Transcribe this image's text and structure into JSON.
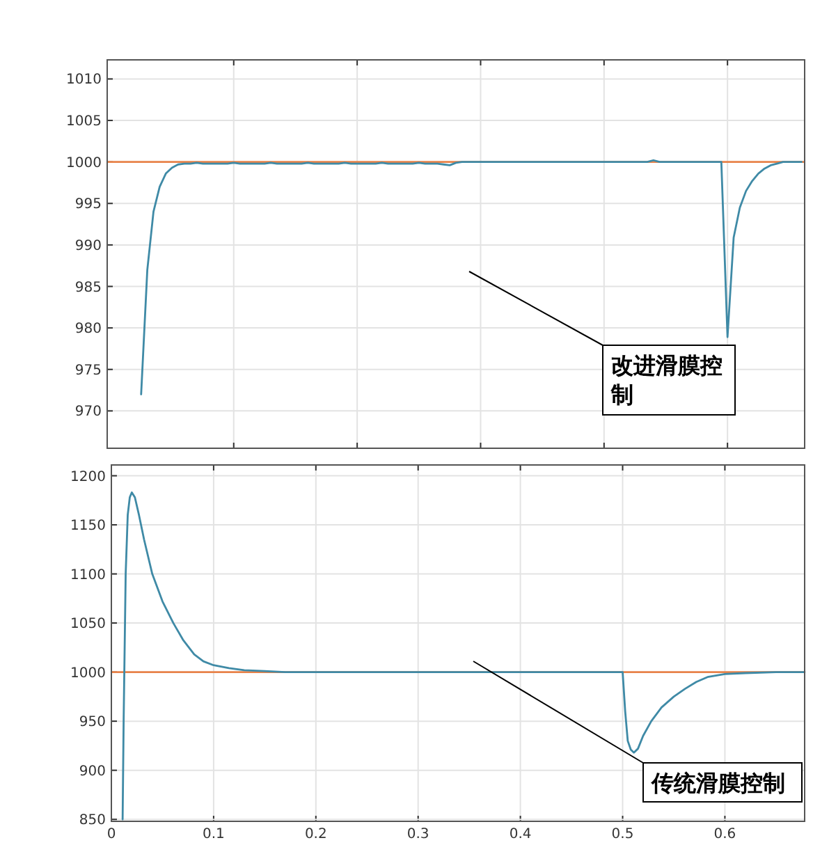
{
  "chart_data": [
    {
      "type": "line",
      "ylim": [
        965.5,
        1012.3
      ],
      "categories": [
        null,
        null,
        null,
        null,
        null,
        null,
        null,
        null,
        null,
        null,
        null,
        null,
        null,
        null,
        null,
        null,
        null,
        null,
        null,
        null,
        null,
        null,
        null,
        null,
        null,
        null,
        null,
        null,
        null,
        null,
        null,
        null,
        null,
        null,
        null,
        null,
        null,
        null,
        null,
        null,
        null,
        null,
        null,
        null,
        null,
        null,
        null,
        null,
        null,
        null,
        null,
        null,
        null,
        null,
        null,
        null,
        null,
        null,
        null,
        null,
        null,
        null,
        null,
        null,
        null,
        null,
        null,
        null,
        null,
        null,
        null,
        null,
        null,
        null,
        null,
        null,
        null,
        null,
        null,
        null,
        null,
        null,
        null,
        null,
        null,
        null,
        null,
        null,
        null,
        null,
        null,
        null,
        null,
        null,
        null,
        null,
        null,
        null,
        null,
        null,
        null,
        null,
        null,
        null,
        null,
        null,
        null,
        null,
        null,
        null,
        null,
        null,
        null
      ],
      "yticks": [
        970,
        975,
        980,
        985,
        990,
        995,
        1000,
        1005,
        1010
      ],
      "tick_labels": "y",
      "grid": true,
      "series": [
        {
          "color": "#3f8aa6",
          "values": [
            null,
            null,
            null,
            null,
            null,
            972,
            987,
            994,
            997,
            998.6,
            999.3,
            999.7,
            999.8,
            999.8,
            999.9,
            999.8,
            999.8,
            999.8,
            999.8,
            999.8,
            999.9,
            999.8,
            999.8,
            999.8,
            999.8,
            999.8,
            999.9,
            999.8,
            999.8,
            999.8,
            999.8,
            999.8,
            999.9,
            999.8,
            999.8,
            999.8,
            999.8,
            999.8,
            999.9,
            999.8,
            999.8,
            999.8,
            999.8,
            999.8,
            999.9,
            999.8,
            999.8,
            999.8,
            999.8,
            999.8,
            999.9,
            999.8,
            999.8,
            999.8,
            999.7,
            999.6,
            999.9,
            1000,
            1000,
            1000,
            1000,
            1000,
            1000,
            1000,
            1000,
            1000,
            1000,
            1000,
            1000,
            1000,
            1000,
            1000,
            1000,
            1000,
            1000,
            1000,
            1000,
            1000,
            1000,
            1000,
            1000,
            1000,
            1000,
            1000,
            1000,
            1000,
            1000,
            1000,
            1000.2,
            1000,
            1000,
            1000,
            1000,
            1000,
            1000,
            1000,
            1000,
            1000,
            1000,
            1000,
            978.9,
            990.9,
            994.5,
            996.5,
            997.7,
            998.6,
            999.2,
            999.6,
            999.8,
            1000,
            1000,
            1000,
            1000
          ]
        }
      ],
      "ref_lines": [
        {
          "axis": "y",
          "value": 1000,
          "color": "#e8834a"
        }
      ],
      "annotations": [
        "改进滑膜控制"
      ]
    },
    {
      "type": "line",
      "xlim": [
        0,
        0.678
      ],
      "ylim": [
        848,
        1211
      ],
      "xticks": [
        0,
        0.1,
        0.2,
        0.3,
        0.4,
        0.5,
        0.6
      ],
      "yticks": [
        850,
        900,
        950,
        1000,
        1050,
        1100,
        1150,
        1200
      ],
      "grid": true,
      "series": [
        {
          "color": "#3f8aa6",
          "x": [
            0.011,
            0.012,
            0.014,
            0.016,
            0.018,
            0.02,
            0.023,
            0.027,
            0.032,
            0.04,
            0.05,
            0.0606,
            0.07,
            0.081,
            0.09,
            0.1,
            0.115,
            0.13,
            0.15,
            0.17,
            0.3,
            0.5,
            0.5025,
            0.505,
            0.508,
            0.511,
            0.515,
            0.52,
            0.528,
            0.538,
            0.55,
            0.561,
            0.572,
            0.583,
            0.6,
            0.62,
            0.65,
            0.678
          ],
          "values": [
            850,
            950,
            1100,
            1160,
            1178,
            1183,
            1178,
            1160,
            1135,
            1100,
            1072,
            1050,
            1033,
            1018,
            1011,
            1007,
            1004,
            1002,
            1001,
            1000,
            1000,
            1000,
            960,
            930,
            921,
            918,
            922,
            935,
            950,
            964,
            975,
            983,
            990,
            995,
            998,
            999,
            1000,
            1000
          ]
        }
      ],
      "ref_lines": [
        {
          "axis": "y",
          "value": 1000,
          "color": "#e8834a"
        }
      ],
      "annotations": [
        "传统滑膜控制"
      ]
    }
  ]
}
